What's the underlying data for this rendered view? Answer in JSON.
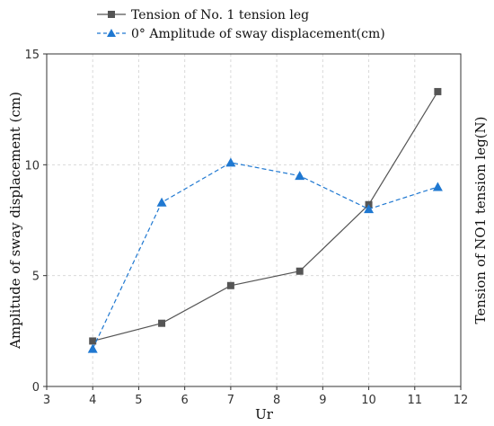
{
  "chart_data": {
    "type": "line",
    "xlabel": "Ur",
    "ylabel_left": "Amplitude of sway displacement (cm)",
    "ylabel_right": "Tension of NO1 tension leg(N)",
    "xlim": [
      3,
      12
    ],
    "ylim": [
      0,
      15
    ],
    "x_ticks": [
      "3",
      "4",
      "5",
      "6",
      "7",
      "8",
      "9",
      "10",
      "11",
      "12"
    ],
    "y_ticks": [
      "0",
      "5",
      "10",
      "15"
    ],
    "grid": true,
    "legend_position": "top",
    "series": [
      {
        "name": "Tension of No. 1 tension leg",
        "marker": "square",
        "line_style": "solid",
        "color": "#555555",
        "x": [
          4,
          5.5,
          7,
          8.5,
          10,
          11.5
        ],
        "y": [
          2.05,
          2.85,
          4.55,
          5.2,
          8.2,
          13.3
        ]
      },
      {
        "name": "0° Amplitude of sway displacement(cm)",
        "marker": "triangle",
        "line_style": "dashed",
        "color": "#1f78d1",
        "x": [
          4,
          5.5,
          7,
          8.5,
          10,
          11.5
        ],
        "y": [
          1.7,
          8.3,
          10.1,
          9.5,
          8.0,
          9.0
        ]
      }
    ]
  }
}
